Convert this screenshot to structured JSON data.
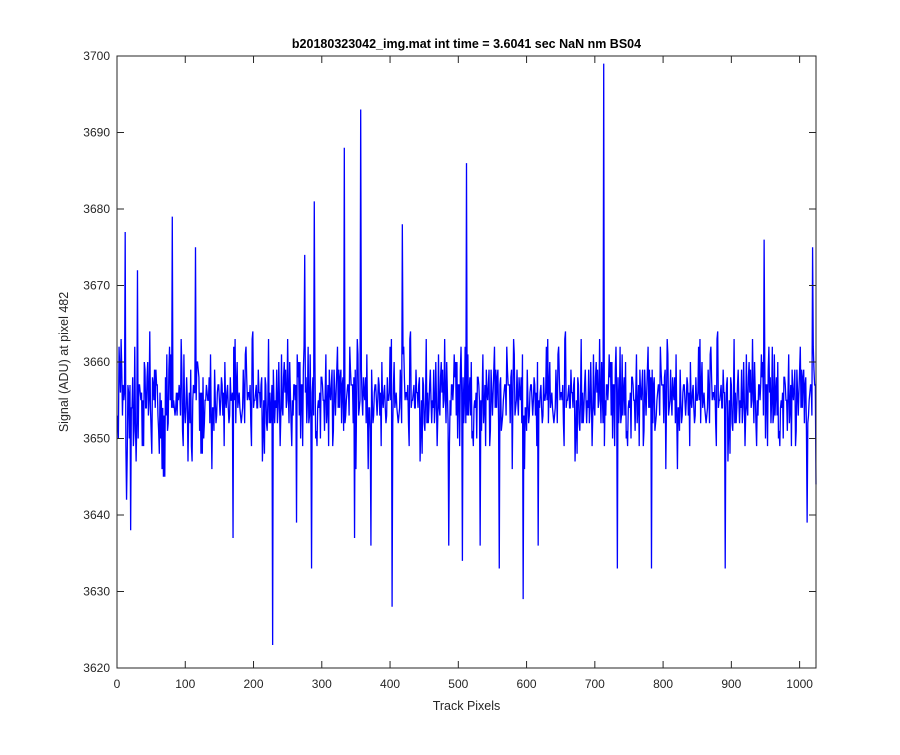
{
  "chart_data": {
    "type": "line",
    "title": "b20180323042_img.mat int time = 3.6041 sec  NaN nm BS04",
    "xlabel": "Track Pixels",
    "ylabel": "Signal (ADU) at pixel 482",
    "xlim": [
      0,
      1024
    ],
    "ylim": [
      3620,
      3700
    ],
    "xticks": [
      0,
      100,
      200,
      300,
      400,
      500,
      600,
      700,
      800,
      900,
      1000
    ],
    "yticks": [
      3620,
      3630,
      3640,
      3650,
      3660,
      3670,
      3680,
      3690,
      3700
    ],
    "xtick_labels": [
      "0",
      "100",
      "200",
      "300",
      "400",
      "500",
      "600",
      "700",
      "800",
      "900",
      "1000"
    ],
    "ytick_labels": [
      "3620",
      "3630",
      "3640",
      "3650",
      "3660",
      "3670",
      "3680",
      "3690",
      "3700"
    ],
    "grid": false,
    "box": true,
    "series": [
      {
        "color": "#0000ff",
        "x_start": 1,
        "x_step": 1,
        "baseline": 3654.5,
        "noise_amplitude": 8,
        "n_points": 1024,
        "notable_points": [
          {
            "x": 1,
            "y": 3653
          },
          {
            "x": 12,
            "y": 3677
          },
          {
            "x": 14,
            "y": 3642
          },
          {
            "x": 20,
            "y": 3638
          },
          {
            "x": 30,
            "y": 3672
          },
          {
            "x": 81,
            "y": 3679
          },
          {
            "x": 115,
            "y": 3675
          },
          {
            "x": 170,
            "y": 3637
          },
          {
            "x": 228,
            "y": 3623
          },
          {
            "x": 263,
            "y": 3639
          },
          {
            "x": 275,
            "y": 3674
          },
          {
            "x": 289,
            "y": 3681
          },
          {
            "x": 285,
            "y": 3633
          },
          {
            "x": 333,
            "y": 3688
          },
          {
            "x": 348,
            "y": 3637
          },
          {
            "x": 357,
            "y": 3693
          },
          {
            "x": 372,
            "y": 3636
          },
          {
            "x": 403,
            "y": 3628
          },
          {
            "x": 418,
            "y": 3678
          },
          {
            "x": 486,
            "y": 3636
          },
          {
            "x": 506,
            "y": 3634
          },
          {
            "x": 512,
            "y": 3686
          },
          {
            "x": 532,
            "y": 3636
          },
          {
            "x": 560,
            "y": 3633
          },
          {
            "x": 595,
            "y": 3629
          },
          {
            "x": 617,
            "y": 3636
          },
          {
            "x": 713,
            "y": 3699
          },
          {
            "x": 733,
            "y": 3633
          },
          {
            "x": 783,
            "y": 3633
          },
          {
            "x": 891,
            "y": 3633
          },
          {
            "x": 948,
            "y": 3676
          },
          {
            "x": 1011,
            "y": 3639
          },
          {
            "x": 1019,
            "y": 3675
          },
          {
            "x": 1024,
            "y": 3644
          }
        ]
      }
    ]
  }
}
